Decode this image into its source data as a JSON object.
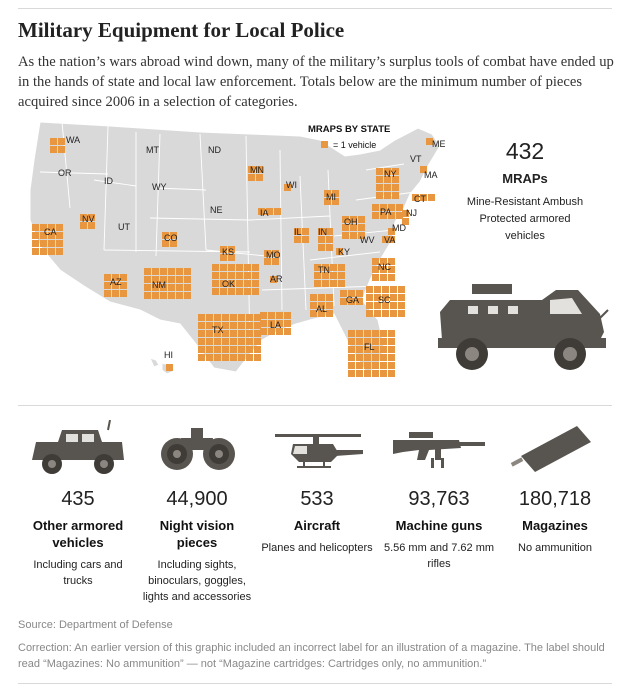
{
  "title": "Military Equipment for Local Police",
  "intro": "As the nation’s wars abroad wind down, many of the military’s surplus tools of combat have ended up in the hands of state and local law enforcement. Totals below are the minimum number of pieces acquired since 2006 in a selection of categories.",
  "map": {
    "legend_title": "MRAPS BY STATE",
    "legend_text": "= 1 vehicle",
    "colors": {
      "land": "#d9d9d9",
      "square": "#e8963f",
      "border": "#ffffff",
      "dark": "#58544f"
    },
    "states": [
      {
        "code": "WA",
        "count": 4
      },
      {
        "code": "OR",
        "count": 0
      },
      {
        "code": "ID",
        "count": 0
      },
      {
        "code": "MT",
        "count": 0
      },
      {
        "code": "ND",
        "count": 0
      },
      {
        "code": "WY",
        "count": 0
      },
      {
        "code": "SD",
        "count": 0
      },
      {
        "code": "NE",
        "count": 0
      },
      {
        "code": "MN",
        "count": 4
      },
      {
        "code": "WI",
        "count": 1
      },
      {
        "code": "MI",
        "count": 4
      },
      {
        "code": "IA",
        "count": 3
      },
      {
        "code": "IL",
        "count": 4
      },
      {
        "code": "IN",
        "count": 6
      },
      {
        "code": "OH",
        "count": 9
      },
      {
        "code": "CA",
        "count": 16
      },
      {
        "code": "NV",
        "count": 4
      },
      {
        "code": "UT",
        "count": 0
      },
      {
        "code": "CO",
        "count": 4
      },
      {
        "code": "KS",
        "count": 4
      },
      {
        "code": "MO",
        "count": 4
      },
      {
        "code": "KY",
        "count": 1
      },
      {
        "code": "WV",
        "count": 0
      },
      {
        "code": "VA",
        "count": 1
      },
      {
        "code": "AZ",
        "count": 9
      },
      {
        "code": "NM",
        "count": 24
      },
      {
        "code": "OK",
        "count": 24
      },
      {
        "code": "AR",
        "count": 1
      },
      {
        "code": "TN",
        "count": 12
      },
      {
        "code": "NC",
        "count": 9
      },
      {
        "code": "TX",
        "count": 48
      },
      {
        "code": "LA",
        "count": 12
      },
      {
        "code": "AL",
        "count": 9
      },
      {
        "code": "GA",
        "count": 6
      },
      {
        "code": "SC",
        "count": 20
      },
      {
        "code": "FL",
        "count": 36
      },
      {
        "code": "HI",
        "count": 1
      },
      {
        "code": "ME",
        "count": 1
      },
      {
        "code": "VT",
        "count": 0
      },
      {
        "code": "NY",
        "count": 12
      },
      {
        "code": "MA",
        "count": 1
      },
      {
        "code": "CT",
        "count": 3
      },
      {
        "code": "PA",
        "count": 8
      },
      {
        "code": "NJ",
        "count": 2
      },
      {
        "code": "MD",
        "count": 2
      }
    ]
  },
  "mrap": {
    "count": "432",
    "label": "MRAPs",
    "desc": "Mine-Resistant Ambush Protected armored vehicles",
    "icon": "mrap-vehicle-icon"
  },
  "categories": [
    {
      "count": "435",
      "name": "Other armored vehicles",
      "desc": "Including cars and trucks",
      "icon": "armored-vehicle-icon"
    },
    {
      "count": "44,900",
      "name": "Night vision pieces",
      "desc": "Including sights, binoculars, goggles, lights and accessories",
      "icon": "night-vision-goggles-icon"
    },
    {
      "count": "533",
      "name": "Aircraft",
      "desc": "Planes and helicopters",
      "icon": "helicopter-icon"
    },
    {
      "count": "93,763",
      "name": "Machine guns",
      "desc": "5.56 mm and 7.62 mm rifles",
      "icon": "machine-gun-icon"
    },
    {
      "count": "180,718",
      "name": "Magazines",
      "desc": "No ammunition",
      "icon": "magazine-icon"
    }
  ],
  "source": "Source: Department of Defense",
  "correction": "Correction: An earlier version of this graphic included an incorrect label for an illustration of a magazine. The label should read “Magazines: No ammunition” — not “Magazine cartridges: Cartridges only, no ammunition.”"
}
